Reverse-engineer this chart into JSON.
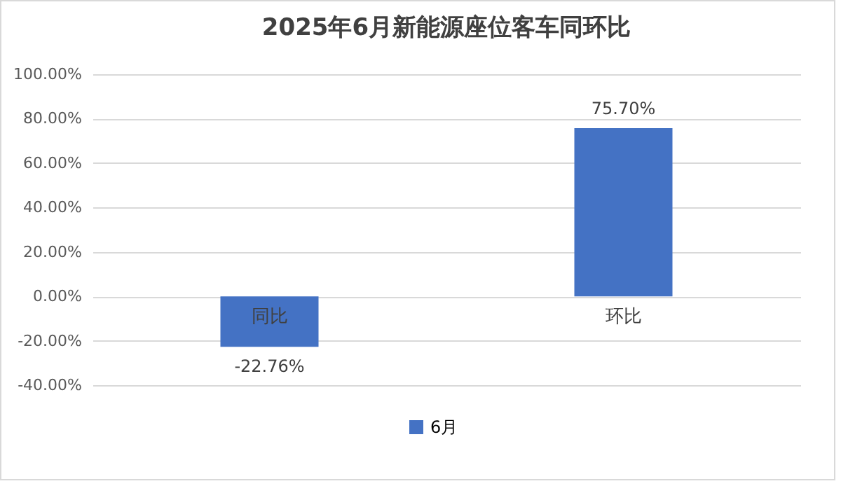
{
  "chart_data": {
    "type": "bar",
    "title": "2025年6月新能源座位客车同环比",
    "categories": [
      "同比",
      "环比"
    ],
    "series": [
      {
        "name": "6月",
        "color": "#4472c4",
        "values": [
          -22.76,
          75.7
        ],
        "value_labels": [
          "-22.76%",
          "75.70%"
        ]
      }
    ],
    "ylim": [
      -40,
      100
    ],
    "yticks": [
      {
        "value": -40,
        "label": "-40.00%"
      },
      {
        "value": -20,
        "label": "-20.00%"
      },
      {
        "value": 0,
        "label": "0.00%"
      },
      {
        "value": 20,
        "label": "20.00%"
      },
      {
        "value": 40,
        "label": "40.00%"
      },
      {
        "value": 60,
        "label": "60.00%"
      },
      {
        "value": 80,
        "label": "80.00%"
      },
      {
        "value": 100,
        "label": "100.00%"
      }
    ],
    "grid": true,
    "legend": "bottom"
  }
}
